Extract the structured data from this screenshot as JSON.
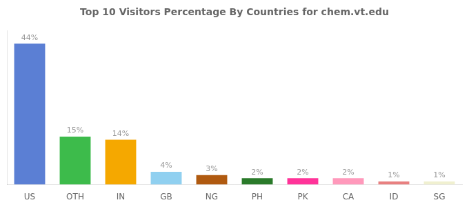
{
  "chart_data": {
    "type": "bar",
    "title": "Top 10 Visitors Percentage By Countries for chem.vt.edu",
    "categories": [
      "US",
      "OTH",
      "IN",
      "GB",
      "NG",
      "PH",
      "PK",
      "CA",
      "ID",
      "SG"
    ],
    "values": [
      44,
      15,
      14,
      4,
      3,
      2,
      2,
      2,
      1,
      1
    ],
    "value_labels": [
      "44%",
      "15%",
      "14%",
      "4%",
      "3%",
      "2%",
      "2%",
      "2%",
      "1%",
      "1%"
    ],
    "colors": [
      "#5b7fd4",
      "#3dbb4b",
      "#f5a800",
      "#90d0f0",
      "#b05a10",
      "#2a7a2a",
      "#ff3399",
      "#ff99bb",
      "#e88080",
      "#f0f0d0"
    ],
    "ylim": [
      0,
      48
    ],
    "grid": false,
    "data_labels": true,
    "tick_labels": "x"
  }
}
